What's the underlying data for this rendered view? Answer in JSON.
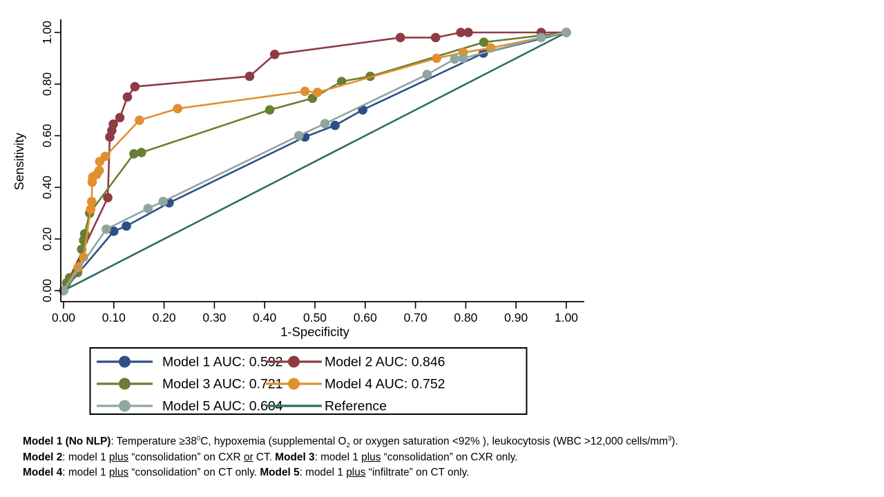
{
  "chart_data": {
    "type": "line",
    "subtype": "roc-curve",
    "title": "",
    "xlabel": "1-Specificity",
    "ylabel": "Sensitivity",
    "xlim": [
      0,
      1
    ],
    "ylim": [
      0,
      1
    ],
    "grid": false,
    "xticks": [
      "0.00",
      "0.10",
      "0.20",
      "0.30",
      "0.40",
      "0.50",
      "0.60",
      "0.70",
      "0.80",
      "0.90",
      "1.00"
    ],
    "yticks": [
      "0.00",
      "0.20",
      "0.40",
      "0.60",
      "0.80",
      "1.00"
    ],
    "axis_color": "#000000",
    "legend": {
      "position": "bottom",
      "columns": 2,
      "border": true
    },
    "series": [
      {
        "name": "Model 1 AUC: 0.592",
        "color": "#2d4f86",
        "markers": true,
        "points": [
          [
            0,
            0
          ],
          [
            0.1,
            0.23
          ],
          [
            0.125,
            0.25
          ],
          [
            0.21,
            0.34
          ],
          [
            0.48,
            0.595
          ],
          [
            0.54,
            0.64
          ],
          [
            0.595,
            0.7
          ],
          [
            0.835,
            0.92
          ],
          [
            1,
            1
          ]
        ]
      },
      {
        "name": "Model 2 AUC: 0.846",
        "color": "#8e3b42",
        "markers": true,
        "points": [
          [
            0,
            0
          ],
          [
            0.088,
            0.36
          ],
          [
            0.092,
            0.595
          ],
          [
            0.096,
            0.62
          ],
          [
            0.099,
            0.645
          ],
          [
            0.112,
            0.67
          ],
          [
            0.127,
            0.75
          ],
          [
            0.142,
            0.79
          ],
          [
            0.37,
            0.83
          ],
          [
            0.42,
            0.915
          ],
          [
            0.67,
            0.98
          ],
          [
            0.74,
            0.98
          ],
          [
            0.79,
            1.0
          ],
          [
            0.805,
            1.0
          ],
          [
            0.95,
            1.0
          ],
          [
            1,
            1
          ]
        ]
      },
      {
        "name": "Model 3 AUC: 0.721",
        "color": "#697e33",
        "markers": true,
        "points": [
          [
            0,
            0
          ],
          [
            0.006,
            0.03
          ],
          [
            0.012,
            0.05
          ],
          [
            0.028,
            0.07
          ],
          [
            0.036,
            0.16
          ],
          [
            0.04,
            0.195
          ],
          [
            0.042,
            0.22
          ],
          [
            0.052,
            0.3
          ],
          [
            0.14,
            0.53
          ],
          [
            0.155,
            0.535
          ],
          [
            0.41,
            0.7
          ],
          [
            0.495,
            0.745
          ],
          [
            0.553,
            0.81
          ],
          [
            0.61,
            0.83
          ],
          [
            0.836,
            0.962
          ],
          [
            1,
            1
          ]
        ]
      },
      {
        "name": "Model 4 AUC: 0.752",
        "color": "#e0902f",
        "markers": true,
        "points": [
          [
            0,
            0
          ],
          [
            0.029,
            0.09
          ],
          [
            0.04,
            0.13
          ],
          [
            0.054,
            0.315
          ],
          [
            0.056,
            0.345
          ],
          [
            0.057,
            0.42
          ],
          [
            0.058,
            0.44
          ],
          [
            0.066,
            0.45
          ],
          [
            0.071,
            0.465
          ],
          [
            0.072,
            0.5
          ],
          [
            0.083,
            0.52
          ],
          [
            0.151,
            0.66
          ],
          [
            0.227,
            0.705
          ],
          [
            0.48,
            0.772
          ],
          [
            0.505,
            0.768
          ],
          [
            0.742,
            0.9
          ],
          [
            0.795,
            0.922
          ],
          [
            0.85,
            0.94
          ],
          [
            1,
            1
          ]
        ]
      },
      {
        "name": "Model 5 AUC: 0.604",
        "color": "#8fa5a0",
        "markers": true,
        "points": [
          [
            0,
            0
          ],
          [
            0.085,
            0.238
          ],
          [
            0.168,
            0.318
          ],
          [
            0.198,
            0.345
          ],
          [
            0.468,
            0.6
          ],
          [
            0.52,
            0.647
          ],
          [
            0.723,
            0.837
          ],
          [
            0.778,
            0.897
          ],
          [
            0.795,
            0.9
          ],
          [
            0.95,
            0.98
          ],
          [
            1,
            1
          ]
        ]
      },
      {
        "name": "Reference",
        "color": "#2b6e64",
        "markers": false,
        "points": [
          [
            0,
            0
          ],
          [
            1,
            1
          ]
        ]
      }
    ]
  },
  "footnotes": [
    [
      {
        "t": "Model 1 (No NLP)",
        "b": true
      },
      {
        "t": ": Temperature ≥38"
      },
      {
        "t": "0",
        "sup": true
      },
      {
        "t": "C, hypoxemia (supplemental O"
      },
      {
        "t": "2",
        "sub": true
      },
      {
        "t": " or oxygen saturation <92% ), leukocytosis (WBC >12,000 cells/mm"
      },
      {
        "t": "3",
        "sup": true
      },
      {
        "t": ")."
      }
    ],
    [
      {
        "t": "Model 2",
        "b": true
      },
      {
        "t": ": model 1 "
      },
      {
        "t": "plus",
        "u": true
      },
      {
        "t": " “consolidation” on CXR "
      },
      {
        "t": "or",
        "u": true
      },
      {
        "t": " CT. "
      },
      {
        "t": "Model 3",
        "b": true
      },
      {
        "t": ": model 1 "
      },
      {
        "t": "plus",
        "u": true
      },
      {
        "t": " “consolidation” on CXR only."
      }
    ],
    [
      {
        "t": "Model 4",
        "b": true
      },
      {
        "t": ": model 1 "
      },
      {
        "t": "plus",
        "u": true
      },
      {
        "t": " “consolidation” on CT only. "
      },
      {
        "t": "Model 5",
        "b": true
      },
      {
        "t": ": model 1 "
      },
      {
        "t": "plus",
        "u": true
      },
      {
        "t": " “infiltrate” on CT only."
      }
    ]
  ]
}
